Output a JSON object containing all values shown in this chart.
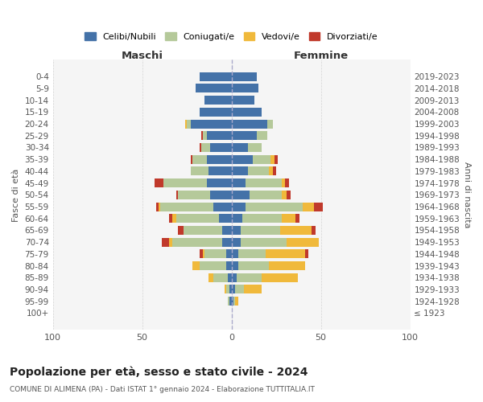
{
  "age_groups": [
    "100+",
    "95-99",
    "90-94",
    "85-89",
    "80-84",
    "75-79",
    "70-74",
    "65-69",
    "60-64",
    "55-59",
    "50-54",
    "45-49",
    "40-44",
    "35-39",
    "30-34",
    "25-29",
    "20-24",
    "15-19",
    "10-14",
    "5-9",
    "0-4"
  ],
  "birth_years": [
    "≤ 1923",
    "1924-1928",
    "1929-1933",
    "1934-1938",
    "1939-1943",
    "1944-1948",
    "1949-1953",
    "1954-1958",
    "1959-1963",
    "1964-1968",
    "1969-1973",
    "1974-1978",
    "1979-1983",
    "1984-1988",
    "1989-1993",
    "1994-1998",
    "1999-2003",
    "2004-2008",
    "2009-2013",
    "2014-2018",
    "2019-2023"
  ],
  "colors": {
    "celibi": "#4472a8",
    "coniugati": "#b5c99a",
    "vedovi": "#f0b93b",
    "divorziati": "#c0392b"
  },
  "males": {
    "celibi": [
      0,
      1,
      1,
      2,
      3,
      3,
      5,
      5,
      7,
      10,
      12,
      14,
      13,
      14,
      12,
      14,
      23,
      18,
      15,
      20,
      18
    ],
    "coniugati": [
      0,
      1,
      2,
      8,
      15,
      12,
      28,
      22,
      24,
      30,
      18,
      24,
      10,
      8,
      5,
      2,
      2,
      0,
      0,
      0,
      0
    ],
    "vedovi": [
      0,
      0,
      1,
      3,
      4,
      1,
      2,
      0,
      2,
      1,
      0,
      0,
      0,
      0,
      0,
      0,
      1,
      0,
      0,
      0,
      0
    ],
    "divorziati": [
      0,
      0,
      0,
      0,
      0,
      2,
      4,
      3,
      2,
      1,
      1,
      5,
      0,
      1,
      1,
      1,
      0,
      0,
      0,
      0,
      0
    ]
  },
  "females": {
    "celibi": [
      0,
      1,
      2,
      3,
      4,
      4,
      5,
      5,
      6,
      8,
      10,
      8,
      9,
      12,
      9,
      14,
      20,
      17,
      13,
      15,
      14
    ],
    "coniugati": [
      0,
      1,
      5,
      14,
      17,
      15,
      26,
      22,
      22,
      32,
      18,
      20,
      12,
      10,
      8,
      6,
      3,
      0,
      0,
      0,
      0
    ],
    "vedovi": [
      0,
      2,
      10,
      20,
      20,
      22,
      18,
      18,
      8,
      6,
      3,
      2,
      2,
      2,
      0,
      0,
      0,
      0,
      0,
      0,
      0
    ],
    "divorziati": [
      0,
      0,
      0,
      0,
      0,
      2,
      0,
      2,
      2,
      5,
      2,
      2,
      2,
      2,
      0,
      0,
      0,
      0,
      0,
      0,
      0
    ]
  },
  "xlim": 100,
  "title": "Popolazione per età, sesso e stato civile - 2024",
  "subtitle": "COMUNE DI ALIMENA (PA) - Dati ISTAT 1° gennaio 2024 - Elaborazione TUTTITALIA.IT",
  "ylabel_left": "Fasce di età",
  "ylabel_right": "Anni di nascita",
  "xlabel_left": "Maschi",
  "xlabel_right": "Femmine",
  "bg_color": "#ffffff",
  "plot_bg": "#f5f5f5",
  "grid_color": "#cccccc"
}
